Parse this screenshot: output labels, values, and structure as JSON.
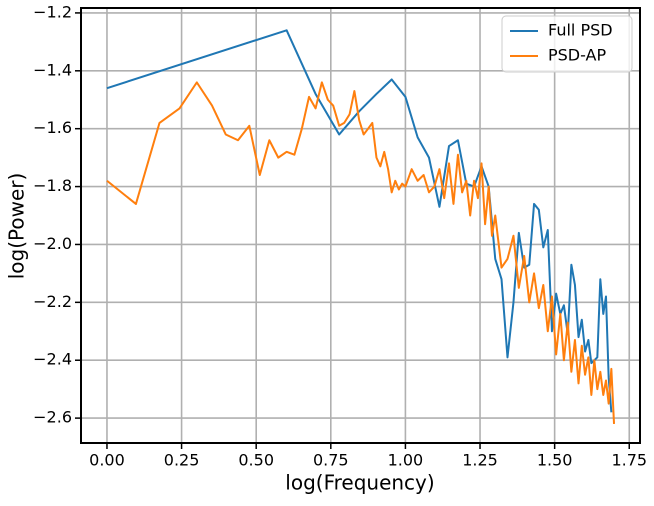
{
  "chart_data": {
    "type": "line",
    "xlabel": "log(Frequency)",
    "ylabel": "log(Power)",
    "xlim": [
      -0.087,
      1.786
    ],
    "ylim": [
      -2.686,
      -1.183
    ],
    "xticks": [
      {
        "value": 0,
        "label": "0.00"
      },
      {
        "value": 0.25,
        "label": "0.25"
      },
      {
        "value": 0.5,
        "label": "0.50"
      },
      {
        "value": 0.75,
        "label": "0.75"
      },
      {
        "value": 1,
        "label": "1.00"
      },
      {
        "value": 1.25,
        "label": "1.25"
      },
      {
        "value": 1.5,
        "label": "1.50"
      },
      {
        "value": 1.75,
        "label": "1.75"
      }
    ],
    "yticks": [
      {
        "value": -2.6,
        "label": "−2.6"
      },
      {
        "value": -2.4,
        "label": "−2.4"
      },
      {
        "value": -2.2,
        "label": "−2.2"
      },
      {
        "value": -2.0,
        "label": "−2.0"
      },
      {
        "value": -1.8,
        "label": "−1.8"
      },
      {
        "value": -1.6,
        "label": "−1.6"
      },
      {
        "value": -1.4,
        "label": "−1.4"
      },
      {
        "value": -1.2,
        "label": "−1.2"
      }
    ],
    "grid": true,
    "legend": "upper right",
    "series": [
      {
        "name": "Full PSD",
        "color": "#1f77b4",
        "x": [
          0,
          0.602,
          0.699,
          0.778,
          0.845,
          0.903,
          0.954,
          1.0,
          1.041,
          1.079,
          1.114,
          1.146,
          1.176,
          1.204,
          1.23,
          1.255,
          1.279,
          1.301,
          1.322,
          1.342,
          1.362,
          1.38,
          1.398,
          1.415,
          1.431,
          1.447,
          1.462,
          1.477,
          1.491,
          1.505,
          1.519,
          1.531,
          1.544,
          1.556,
          1.568,
          1.58,
          1.591,
          1.602,
          1.613,
          1.623,
          1.633,
          1.643,
          1.653,
          1.663,
          1.672,
          1.681,
          1.69
        ],
        "values": [
          -1.46,
          -1.26,
          -1.48,
          -1.62,
          -1.54,
          -1.48,
          -1.43,
          -1.49,
          -1.63,
          -1.7,
          -1.87,
          -1.66,
          -1.64,
          -1.79,
          -1.8,
          -1.73,
          -1.8,
          -2.05,
          -2.12,
          -2.39,
          -2.2,
          -1.96,
          -2.08,
          -2.07,
          -1.86,
          -1.88,
          -2.01,
          -1.95,
          -2.3,
          -2.17,
          -2.24,
          -2.21,
          -2.31,
          -2.07,
          -2.14,
          -2.32,
          -2.26,
          -2.37,
          -2.33,
          -2.41,
          -2.4,
          -2.39,
          -2.12,
          -2.24,
          -2.18,
          -2.46,
          -2.58
        ]
      },
      {
        "name": "PSD-AP",
        "color": "#ff7f0e",
        "x": [
          0,
          0.097,
          0.176,
          0.243,
          0.301,
          0.352,
          0.398,
          0.439,
          0.477,
          0.512,
          0.544,
          0.574,
          0.602,
          0.628,
          0.653,
          0.677,
          0.699,
          0.72,
          0.74,
          0.758,
          0.778,
          0.795,
          0.813,
          0.829,
          0.845,
          0.86,
          0.875,
          0.889,
          0.903,
          0.916,
          0.929,
          0.942,
          0.954,
          0.966,
          0.978,
          0.989,
          1.0,
          1.021,
          1.041,
          1.061,
          1.079,
          1.097,
          1.114,
          1.13,
          1.146,
          1.161,
          1.176,
          1.19,
          1.204,
          1.217,
          1.23,
          1.243,
          1.255,
          1.267,
          1.279,
          1.29,
          1.301,
          1.322,
          1.342,
          1.362,
          1.38,
          1.398,
          1.415,
          1.431,
          1.447,
          1.462,
          1.477,
          1.491,
          1.505,
          1.519,
          1.531,
          1.544,
          1.556,
          1.568,
          1.58,
          1.591,
          1.602,
          1.613,
          1.623,
          1.633,
          1.643,
          1.653,
          1.663,
          1.672,
          1.681,
          1.69,
          1.699
        ],
        "values": [
          -1.78,
          -1.86,
          -1.58,
          -1.53,
          -1.44,
          -1.52,
          -1.62,
          -1.64,
          -1.59,
          -1.76,
          -1.64,
          -1.7,
          -1.68,
          -1.69,
          -1.6,
          -1.49,
          -1.53,
          -1.44,
          -1.5,
          -1.52,
          -1.59,
          -1.58,
          -1.55,
          -1.47,
          -1.57,
          -1.62,
          -1.6,
          -1.58,
          -1.7,
          -1.73,
          -1.68,
          -1.74,
          -1.82,
          -1.78,
          -1.81,
          -1.79,
          -1.8,
          -1.74,
          -1.78,
          -1.76,
          -1.82,
          -1.8,
          -1.74,
          -1.84,
          -1.72,
          -1.86,
          -1.69,
          -1.82,
          -1.78,
          -1.9,
          -1.78,
          -1.84,
          -1.72,
          -1.93,
          -1.8,
          -1.97,
          -1.9,
          -2.08,
          -2.05,
          -1.97,
          -2.15,
          -2.04,
          -2.2,
          -2.1,
          -2.22,
          -2.14,
          -2.3,
          -2.18,
          -2.38,
          -2.24,
          -2.4,
          -2.27,
          -2.44,
          -2.33,
          -2.48,
          -2.35,
          -2.45,
          -2.39,
          -2.52,
          -2.4,
          -2.5,
          -2.44,
          -2.52,
          -2.47,
          -2.55,
          -2.43,
          -2.62
        ]
      }
    ]
  }
}
